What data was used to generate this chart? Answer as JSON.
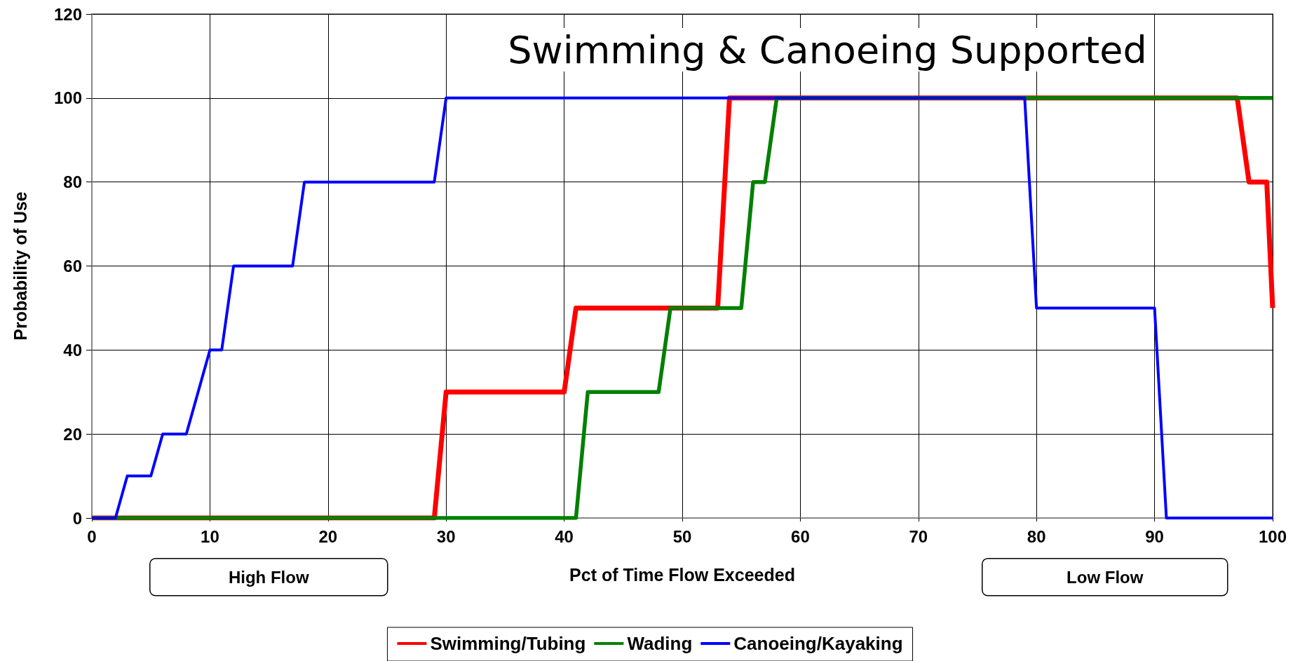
{
  "chart_data": {
    "type": "line",
    "title": "Swimming & Canoeing Supported",
    "xlabel": "Pct of Time Flow Exceeded",
    "ylabel": "Probability of Use",
    "annotations": [
      "High Flow",
      "Low Flow"
    ],
    "series": [
      {
        "name": "Swimming/Tubing",
        "color": "#ff0000",
        "x": [
          0,
          29,
          30,
          40,
          41,
          53,
          54,
          97,
          98,
          99.5,
          100
        ],
        "values": [
          0,
          0,
          30,
          30,
          50,
          50,
          100,
          100,
          80,
          80,
          50
        ]
      },
      {
        "name": "Wading",
        "color": "#008000",
        "x": [
          0,
          41,
          42,
          48,
          49,
          55,
          56,
          57,
          58,
          100
        ],
        "values": [
          0,
          0,
          30,
          30,
          50,
          50,
          80,
          80,
          100,
          100
        ]
      },
      {
        "name": "Canoeing/Kayaking",
        "color": "#0000ff",
        "x": [
          0,
          2,
          3,
          5,
          6,
          8,
          10,
          11,
          12,
          17,
          18,
          29,
          30,
          79,
          80,
          90,
          91,
          100
        ],
        "values": [
          0,
          0,
          10,
          10,
          20,
          20,
          40,
          40,
          60,
          60,
          80,
          80,
          100,
          100,
          50,
          50,
          0,
          0
        ]
      }
    ],
    "xlim": [
      0,
      100
    ],
    "xticks": [
      0,
      10,
      20,
      30,
      40,
      50,
      60,
      70,
      80,
      90,
      100
    ],
    "ylim": [
      0,
      120
    ],
    "yticks": [
      0,
      20,
      40,
      60,
      80,
      100,
      120
    ],
    "grid": true,
    "legend": "bottom",
    "line_style": "solid"
  }
}
